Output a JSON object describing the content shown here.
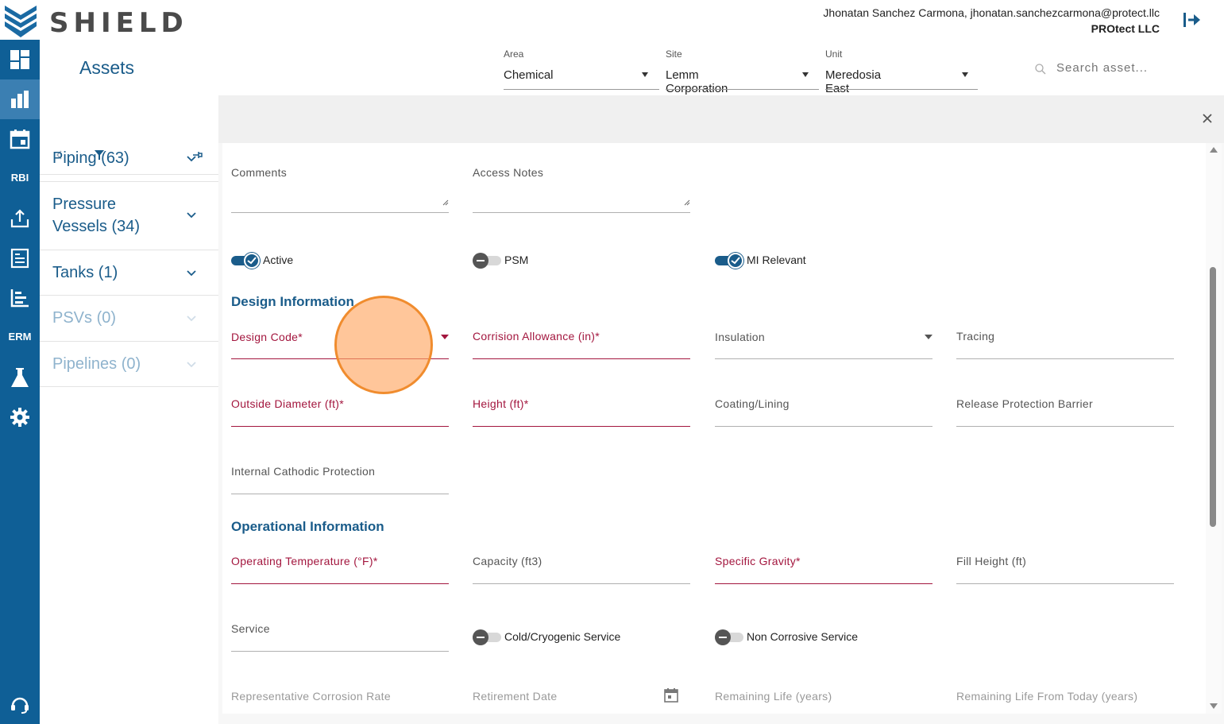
{
  "brand": {
    "name": "SHIELD"
  },
  "user": {
    "line1": "Jhonatan Sanchez Carmona, jhonatan.sanchezcarmona@protect.llc",
    "line2": "PROtect LLC"
  },
  "sidenav": {
    "rbi_label": "RBI",
    "erm_label": "ERM"
  },
  "assets": {
    "title": "Assets",
    "categories": [
      {
        "label": "Piping (63)",
        "enabled": true
      },
      {
        "label": "Pressure Vessels (34)",
        "line1": "Pressure",
        "line2": "Vessels (34)",
        "enabled": true
      },
      {
        "label": "Tanks (1)",
        "enabled": true
      },
      {
        "label": "PSVs (0)",
        "enabled": false
      },
      {
        "label": "Pipelines (0)",
        "enabled": false
      }
    ]
  },
  "filters": {
    "area": {
      "label": "Area",
      "value": "Chemical"
    },
    "site": {
      "label": "Site",
      "value": "Lemm Corporation"
    },
    "unit": {
      "label": "Unit",
      "value": "Meredosia East"
    },
    "search_placeholder": "Search asset..."
  },
  "form": {
    "comments": "Comments",
    "access_notes": "Access Notes",
    "toggles": {
      "active": {
        "label": "Active",
        "on": true
      },
      "psm": {
        "label": "PSM",
        "on": false
      },
      "mi_relevant": {
        "label": "MI Relevant",
        "on": true
      },
      "cold_cryogenic": {
        "label": "Cold/Cryogenic Service",
        "on": false
      },
      "non_corrosive": {
        "label": "Non Corrosive Service",
        "on": false
      }
    },
    "design_section": "Design Information",
    "design_code": "Design Code*",
    "corrosion_allowance": "Corrision Allowance (in)*",
    "insulation": "Insulation",
    "tracing": "Tracing",
    "outside_diameter": "Outside Diameter (ft)*",
    "height": "Height (ft)*",
    "coating_lining": "Coating/Lining",
    "release_protection": "Release Protection Barrier",
    "internal_cathodic": "Internal Cathodic Protection",
    "operational_section": "Operational Information",
    "operating_temperature": "Operating Temperature (°F)*",
    "capacity": "Capacity (ft3)",
    "specific_gravity": "Specific Gravity*",
    "fill_height": "Fill Height (ft)",
    "service": "Service",
    "representative_corrosion_rate": "Representative Corrosion Rate",
    "retirement_date": "Retirement Date",
    "remaining_life": "Remaining Life (years)",
    "remaining_life_today": "Remaining Life From Today (years)"
  },
  "colors": {
    "brand_blue": "#0f5f96",
    "accent": "#1a5c8a",
    "required": "#a3163e",
    "cursor": "#f08c2e"
  }
}
